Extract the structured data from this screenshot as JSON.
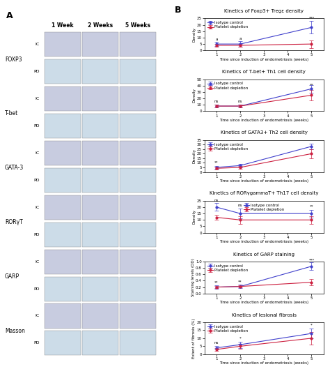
{
  "chart_data": [
    {
      "type": "image_grid",
      "title": "A",
      "columns": [
        "1 Week",
        "2 Weeks",
        "5 Weeks"
      ],
      "rows": [
        "FOXP3",
        "T-bet",
        "GATA-3",
        "RORγT",
        "GARP",
        "Masson"
      ],
      "sub_rows": [
        "IC",
        "PD"
      ]
    },
    {
      "type": "panel",
      "title": "B",
      "charts": [
        {
          "type": "line",
          "title": "Kinetics of Foxp3+ Tregε density",
          "x_label": "Time since induction of endometriosis (weeks)",
          "y_label": "Density",
          "x": [
            1,
            2,
            5
          ],
          "xlim": [
            0.5,
            5.5
          ],
          "xticks": [
            1,
            2,
            3,
            4,
            5
          ],
          "ylim": [
            0,
            25
          ],
          "yticks": [
            0,
            5,
            10,
            15,
            20,
            25
          ],
          "legend": "upper left",
          "series": [
            {
              "name": "Isotype control",
              "color": "#4040cc",
              "marker": "o",
              "values": [
                5,
                5,
                18
              ],
              "errors": [
                1.5,
                2,
                5
              ]
            },
            {
              "name": "Platelet depletion",
              "color": "#cc2040",
              "marker": "o",
              "values": [
                4,
                4,
                5
              ],
              "errors": [
                1,
                1,
                3
              ]
            }
          ],
          "annotations": [
            {
              "x": 1,
              "y": 7,
              "text": "a"
            },
            {
              "x": 2,
              "y": 8,
              "text": "a"
            },
            {
              "x": 5,
              "y": 24,
              "text": "***"
            }
          ]
        },
        {
          "type": "line",
          "title": "Kinetics of T-bet+ Th1 cell density",
          "x_label": "Time since induction of endometriosis (weeks)",
          "y_label": "Density",
          "x": [
            1,
            2,
            5
          ],
          "xlim": [
            0.5,
            5.5
          ],
          "xticks": [
            1,
            2,
            3,
            4,
            5
          ],
          "ylim": [
            0,
            50
          ],
          "yticks": [
            0,
            10,
            20,
            30,
            40,
            50
          ],
          "legend": "upper left",
          "series": [
            {
              "name": "Isotype control",
              "color": "#4040cc",
              "marker": "o",
              "values": [
                8,
                8,
                35
              ],
              "errors": [
                2,
                2,
                6
              ]
            },
            {
              "name": "Platelet depletion",
              "color": "#cc2040",
              "marker": "o",
              "values": [
                8,
                8,
                25
              ],
              "errors": [
                2,
                2,
                8
              ]
            }
          ],
          "annotations": [
            {
              "x": 1,
              "y": 12,
              "text": "ns"
            },
            {
              "x": 2,
              "y": 12,
              "text": "ns"
            },
            {
              "x": 5,
              "y": 38,
              "text": "**"
            }
          ]
        },
        {
          "type": "line",
          "title": "Kinetics of GATA3+ Th2 cell density",
          "x_label": "Time since induction of endometriosis (weeks)",
          "y_label": "Density",
          "x": [
            1,
            2,
            5
          ],
          "xlim": [
            0.5,
            5.5
          ],
          "xticks": [
            1,
            2,
            3,
            4,
            5
          ],
          "ylim": [
            0,
            35
          ],
          "yticks": [
            0,
            5,
            10,
            15,
            20,
            25,
            30,
            35
          ],
          "legend": "upper left",
          "series": [
            {
              "name": "Isotype control",
              "color": "#4040cc",
              "marker": "o",
              "values": [
                5,
                7,
                28
              ],
              "errors": [
                1.5,
                2,
                3
              ]
            },
            {
              "name": "Platelet depletion",
              "color": "#cc2040",
              "marker": "o",
              "values": [
                4,
                5,
                20
              ],
              "errors": [
                1,
                1.5,
                5
              ]
            }
          ],
          "annotations": [
            {
              "x": 1,
              "y": 8,
              "text": "**"
            }
          ]
        },
        {
          "type": "line",
          "title": "Kinetics of RORγgammaT+ Th17 cell density",
          "x_label": "Time since induction of endometriosis (weeks)",
          "y_label": "Density",
          "x": [
            1,
            2,
            5
          ],
          "xlim": [
            0.5,
            5.5
          ],
          "xticks": [
            1,
            2,
            3,
            4,
            5
          ],
          "ylim": [
            0,
            25
          ],
          "yticks": [
            0,
            5,
            10,
            15,
            20,
            25
          ],
          "legend": "upper center",
          "series": [
            {
              "name": "Isotype control",
              "color": "#4040cc",
              "marker": "o",
              "values": [
                20,
                15,
                15
              ],
              "errors": [
                3,
                4,
                3
              ]
            },
            {
              "name": "Platelet depletion",
              "color": "#cc2040",
              "marker": "o",
              "values": [
                12,
                10,
                10
              ],
              "errors": [
                2,
                3,
                3
              ]
            }
          ],
          "annotations": [
            {
              "x": 1,
              "y": 24,
              "text": "ns"
            },
            {
              "x": 2,
              "y": 20,
              "text": "ns"
            },
            {
              "x": 5,
              "y": 19,
              "text": "**"
            }
          ]
        },
        {
          "type": "line",
          "title": "Kinetics of GARP staining",
          "x_label": "Time since induction of endometriosis (weeks)",
          "y_label": "Staining levels (OD)",
          "x": [
            1,
            2,
            5
          ],
          "xlim": [
            0.5,
            5.5
          ],
          "xticks": [
            1,
            2,
            3,
            4,
            5
          ],
          "ylim": [
            0,
            1.0
          ],
          "yticks": [
            0.0,
            0.2,
            0.4,
            0.6,
            0.8,
            1.0
          ],
          "legend": "upper left",
          "series": [
            {
              "name": "Isotype control",
              "color": "#4040cc",
              "marker": "o",
              "values": [
                0.2,
                0.22,
                0.85
              ],
              "errors": [
                0.05,
                0.05,
                0.12
              ]
            },
            {
              "name": "Platelet depletion",
              "color": "#cc2040",
              "marker": "o",
              "values": [
                0.2,
                0.22,
                0.35
              ],
              "errors": [
                0.04,
                0.04,
                0.1
              ]
            }
          ],
          "annotations": [
            {
              "x": 1,
              "y": 0.28,
              "text": "**"
            },
            {
              "x": 2,
              "y": 0.3,
              "text": "**"
            },
            {
              "x": 5,
              "y": 0.98,
              "text": "***"
            }
          ]
        },
        {
          "type": "line",
          "title": "Kinetics of lesional fibrosis",
          "x_label": "Time since induction of endometriosis (weeks)",
          "y_label": "Extent of fibrosis (%)",
          "x": [
            1,
            2,
            5
          ],
          "xlim": [
            0.5,
            5.5
          ],
          "xticks": [
            1,
            2,
            3,
            4,
            5
          ],
          "ylim": [
            0,
            20
          ],
          "yticks": [
            0,
            5,
            10,
            15,
            20
          ],
          "legend": "upper left",
          "series": [
            {
              "name": "Isotype control",
              "color": "#4040cc",
              "marker": "o",
              "values": [
                4,
                6,
                13
              ],
              "errors": [
                1,
                2,
                3
              ]
            },
            {
              "name": "Platelet depletion",
              "color": "#cc2040",
              "marker": "o",
              "values": [
                3,
                5,
                10
              ],
              "errors": [
                1,
                1.5,
                4
              ]
            }
          ],
          "annotations": [
            {
              "x": 1,
              "y": 6,
              "text": "ns"
            },
            {
              "x": 2,
              "y": 9,
              "text": "*"
            },
            {
              "x": 5,
              "y": 17,
              "text": "*"
            }
          ]
        }
      ]
    }
  ]
}
